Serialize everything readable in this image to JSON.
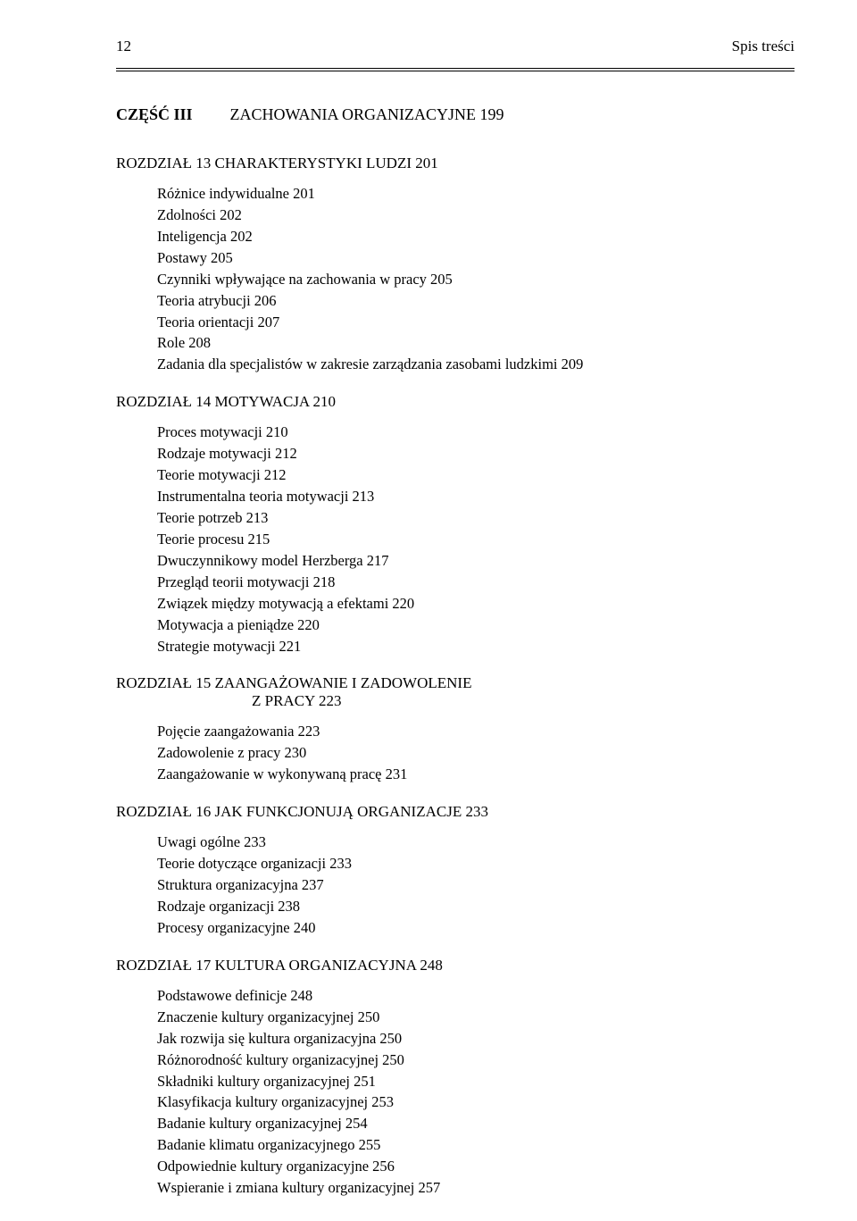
{
  "page_number": "12",
  "header_title": "Spis treści",
  "part": {
    "label": "CZĘŚĆ III",
    "title": "ZACHOWANIA ORGANIZACYJNE  199"
  },
  "chapters": [
    {
      "heading": "ROZDZIAŁ 13  CHARAKTERYSTYKI LUDZI  201",
      "subheading": "",
      "entries": [
        "Różnice indywidualne   201",
        "Zdolności   202",
        "Inteligencja   202",
        "Postawy   205",
        "Czynniki wpływające na zachowania w pracy    205",
        "Teoria atrybucji   206",
        "Teoria orientacji   207",
        "Role    208",
        "Zadania dla specjalistów w zakresie zarządzania zasobami ludzkimi   209"
      ]
    },
    {
      "heading": "ROZDZIAŁ 14  MOTYWACJA  210",
      "subheading": "",
      "entries": [
        "Proces motywacji   210",
        "Rodzaje motywacji    212",
        "Teorie motywacji    212",
        "Instrumentalna teoria motywacji   213",
        "Teorie potrzeb    213",
        "Teorie procesu    215",
        "Dwuczynnikowy model Herzberga    217",
        "Przegląd teorii motywacji    218",
        "Związek między motywacją a efektami    220",
        "Motywacja a pieniądze    220",
        "Strategie motywacji    221"
      ]
    },
    {
      "heading": "ROZDZIAŁ 15  ZAANGAŻOWANIE I ZADOWOLENIE",
      "subheading": "Z PRACY  223",
      "entries": [
        "Pojęcie zaangażowania   223",
        "Zadowolenie z pracy   230",
        "Zaangażowanie w wykonywaną pracę   231"
      ]
    },
    {
      "heading": "ROZDZIAŁ 16  JAK FUNKCJONUJĄ ORGANIZACJE   233",
      "subheading": "",
      "entries": [
        "Uwagi ogólne   233",
        "Teorie dotyczące organizacji   233",
        "Struktura organizacyjna    237",
        "Rodzaje organizacji   238",
        "Procesy organizacyjne   240"
      ]
    },
    {
      "heading": "ROZDZIAŁ 17  KULTURA ORGANIZACYJNA  248",
      "subheading": "",
      "entries": [
        "Podstawowe definicje   248",
        "Znaczenie kultury organizacyjnej    250",
        "Jak rozwija się kultura organizacyjna   250",
        "Różnorodność kultury organizacyjnej    250",
        "Składniki kultury organizacyjnej   251",
        "Klasyfikacja kultury organizacyjnej   253",
        "Badanie kultury organizacyjnej   254",
        "Badanie klimatu organizacyjnego   255",
        "Odpowiednie kultury organizacyjne    256",
        "Wspieranie i zmiana kultury organizacyjnej    257"
      ]
    }
  ]
}
